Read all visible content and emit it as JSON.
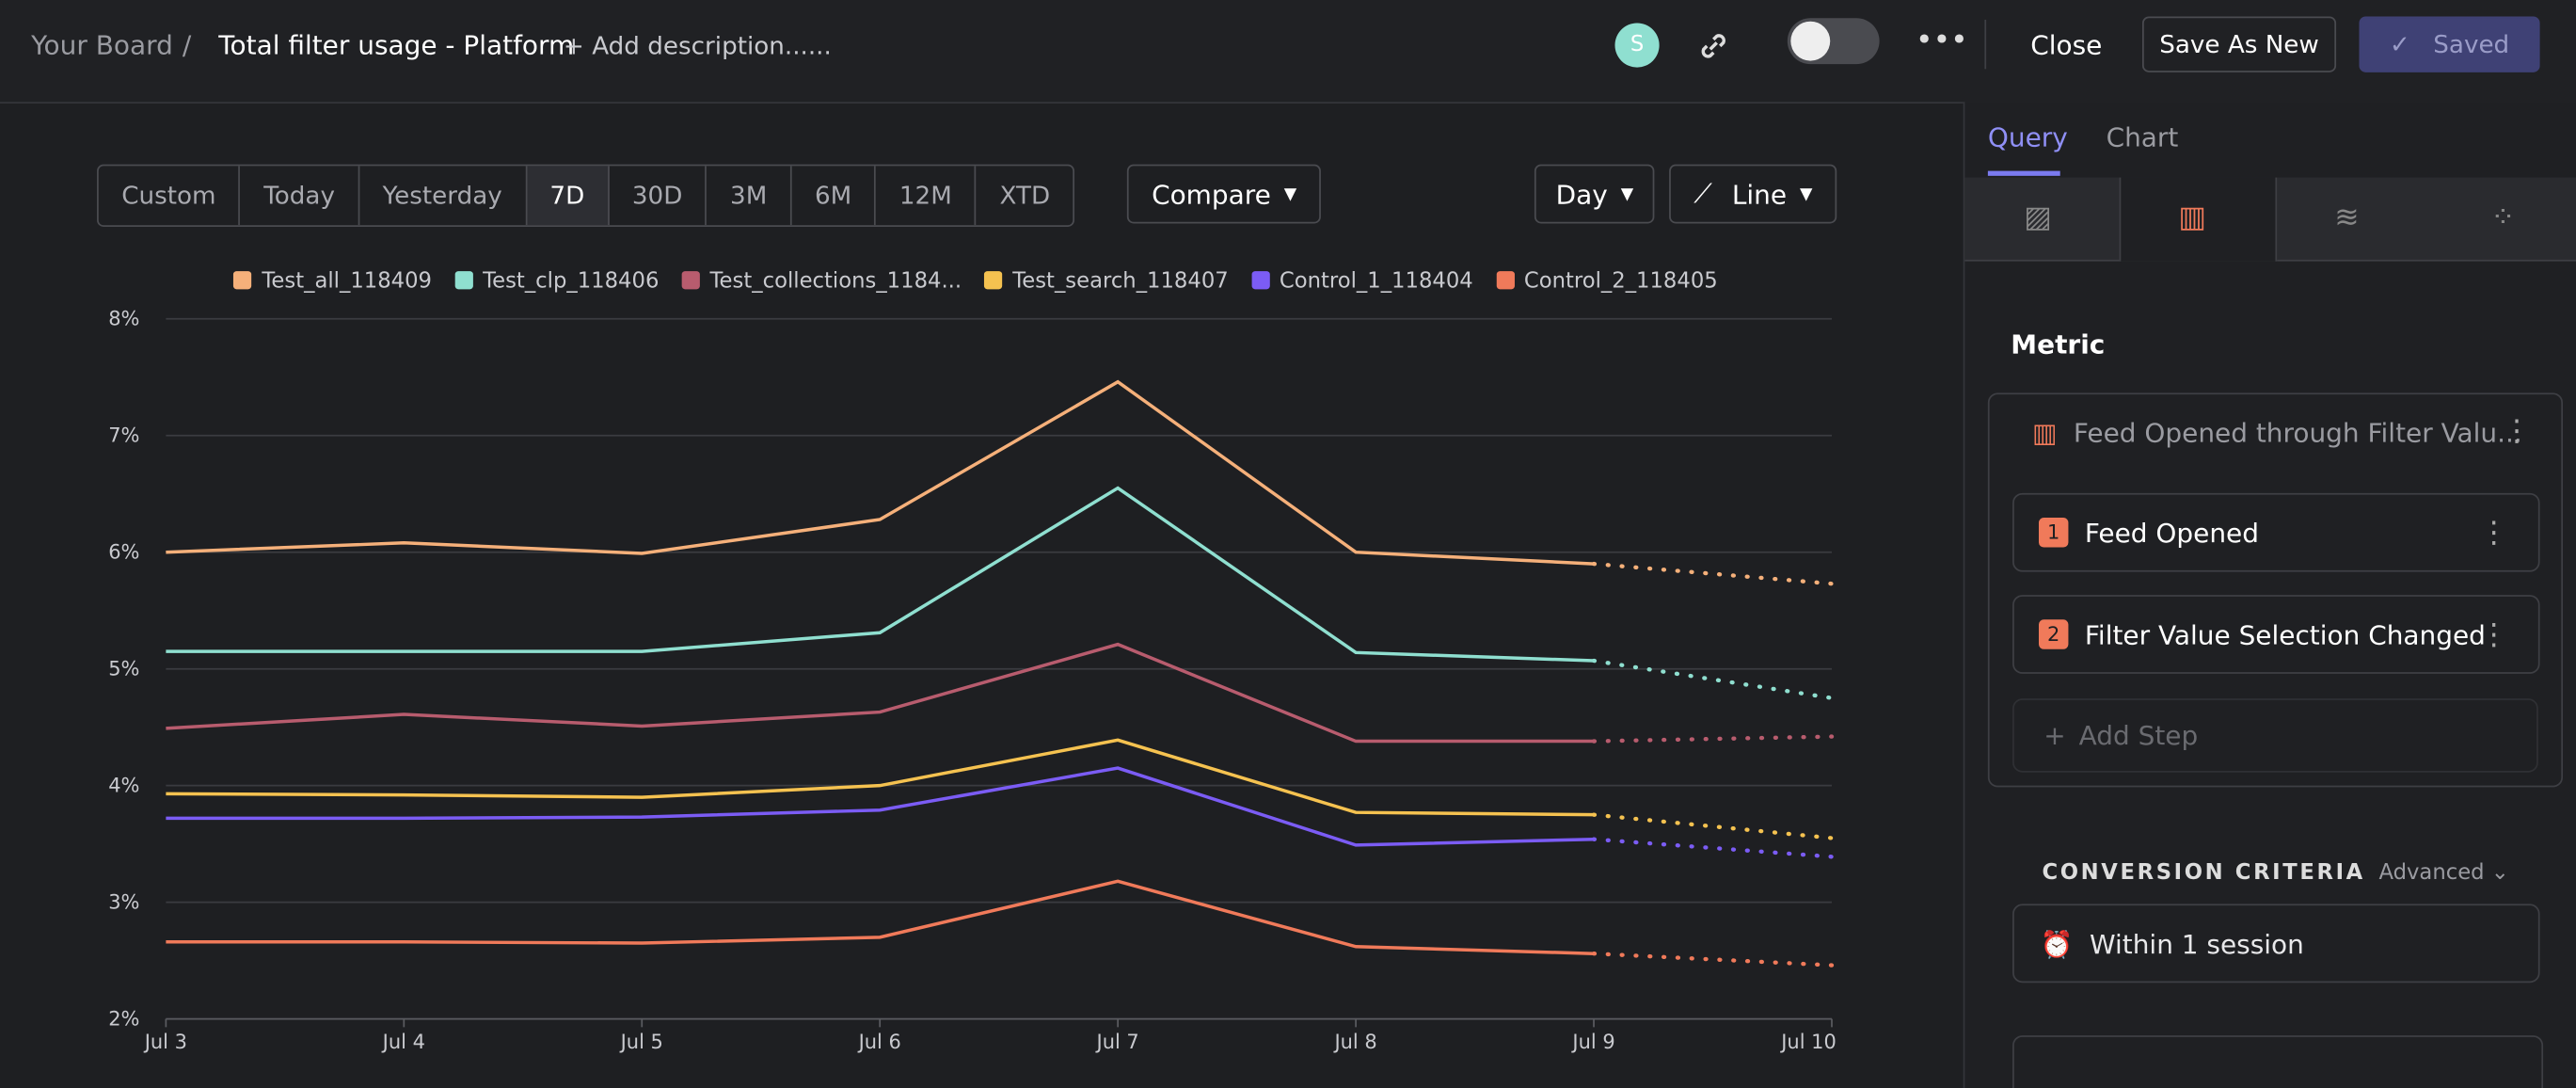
{
  "header": {
    "board": "Your Board",
    "separator": "/",
    "title": "Total filter usage - Platform",
    "description": "+ Add description......",
    "avatar": "S",
    "close": "Close",
    "save_new": "Save As New",
    "saved": "Saved"
  },
  "toolbar": {
    "ranges": [
      "Custom",
      "Today",
      "Yesterday",
      "7D",
      "30D",
      "3M",
      "6M",
      "12M",
      "XTD"
    ],
    "selected": 3,
    "compare": "Compare",
    "interval": "Day",
    "chart_kind": "Line"
  },
  "panel": {
    "tabs": [
      "Query",
      "Chart"
    ],
    "section": "Metric",
    "metric": "Feed Opened through Filter Valu...",
    "steps": [
      {
        "index": 1,
        "label": "Feed Opened"
      },
      {
        "index": 2,
        "label": "Filter Value Selection Changed"
      }
    ],
    "add_step": "Add Step",
    "criteria_title": "CONVERSION CRITERIA",
    "criteria_mode": "Advanced",
    "criteria": "Within 1 session"
  },
  "chart_data": {
    "type": "line",
    "categories": [
      "Jul 3",
      "Jul 4",
      "Jul 5",
      "Jul 6",
      "Jul 7",
      "Jul 8",
      "Jul 9",
      "Jul 10"
    ],
    "ylim": [
      2,
      8
    ],
    "yticks": [
      {
        "value": 2,
        "label": "2%"
      },
      {
        "value": 3,
        "label": "3%"
      },
      {
        "value": 4,
        "label": "4%"
      },
      {
        "value": 5,
        "label": "5%"
      },
      {
        "value": 6,
        "label": "6%"
      },
      {
        "value": 7,
        "label": "7%"
      },
      {
        "value": 8,
        "label": "8%"
      }
    ],
    "grid": true,
    "dotted_last_segment": true,
    "series": [
      {
        "name": "Test_all_118409",
        "color": "#f5b07a",
        "values": [
          6.0,
          6.08,
          5.99,
          6.28,
          7.46,
          6.0,
          5.9,
          5.73
        ]
      },
      {
        "name": "Test_clp_118406",
        "color": "#8fdfd0",
        "values": [
          5.15,
          5.15,
          5.15,
          5.31,
          6.55,
          5.14,
          5.07,
          4.75
        ]
      },
      {
        "name": "Test_collections_1184...",
        "color": "#b85c6e",
        "values": [
          4.49,
          4.61,
          4.51,
          4.63,
          5.21,
          4.38,
          4.38,
          4.42
        ]
      },
      {
        "name": "Test_search_118407",
        "color": "#f5c250",
        "values": [
          3.93,
          3.92,
          3.9,
          4.0,
          4.39,
          3.77,
          3.75,
          3.55
        ]
      },
      {
        "name": "Control_1_118404",
        "color": "#7b5cf5",
        "values": [
          3.72,
          3.72,
          3.73,
          3.79,
          4.15,
          3.49,
          3.54,
          3.39
        ]
      },
      {
        "name": "Control_2_118405",
        "color": "#f07a5a",
        "values": [
          2.66,
          2.66,
          2.65,
          2.7,
          3.18,
          2.62,
          2.56,
          2.46
        ]
      }
    ]
  }
}
